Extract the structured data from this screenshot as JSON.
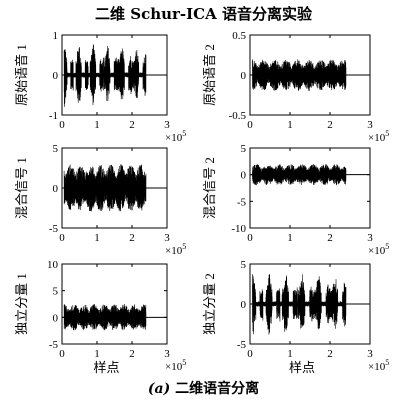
{
  "figure_title": "二维 Schur-ICA 语音分离实验",
  "caption": {
    "tag": "(a)",
    "text": "二维语音分离"
  },
  "chart_data": [
    {
      "type": "line",
      "title": "",
      "ylabel": "原始语音 1",
      "xlabel": "",
      "xlim": [
        0,
        3
      ],
      "ylim": [
        -1,
        1
      ],
      "yticks": [
        -1,
        0,
        1
      ],
      "xticks": [
        0,
        1,
        2,
        3
      ],
      "x_multiplier": "×10^5",
      "signal": {
        "start": 0.06,
        "end": 2.4,
        "amplitude": 0.8,
        "pattern": "bursty"
      }
    },
    {
      "type": "line",
      "title": "",
      "ylabel": "原始语音 2",
      "xlabel": "",
      "xlim": [
        0,
        3
      ],
      "ylim": [
        -0.5,
        0.5
      ],
      "yticks": [
        -0.5,
        0,
        0.5
      ],
      "xticks": [
        0,
        1,
        2,
        3
      ],
      "x_multiplier": "×10^5",
      "signal": {
        "start": 0.06,
        "end": 2.4,
        "amplitude": 0.2,
        "pattern": "dense"
      }
    },
    {
      "type": "line",
      "title": "",
      "ylabel": "混合信号 1",
      "xlabel": "",
      "xlim": [
        0,
        3
      ],
      "ylim": [
        -5,
        5
      ],
      "yticks": [
        -5,
        0,
        5
      ],
      "xticks": [
        0,
        1,
        2,
        3
      ],
      "x_multiplier": "×10^5",
      "signal": {
        "start": 0.06,
        "end": 2.4,
        "amplitude": 3,
        "pattern": "dense"
      }
    },
    {
      "type": "line",
      "title": "",
      "ylabel": "混合信号 2",
      "xlabel": "",
      "xlim": [
        0,
        3
      ],
      "ylim": [
        -10,
        5
      ],
      "yticks": [
        -10,
        -5,
        0,
        5
      ],
      "xticks": [
        0,
        1,
        2,
        3
      ],
      "x_multiplier": "×10^5",
      "signal": {
        "start": 0.06,
        "end": 2.4,
        "amplitude": 2,
        "pattern": "dense"
      }
    },
    {
      "type": "line",
      "title": "",
      "ylabel": "独立分量 1",
      "xlabel": "样点",
      "xlim": [
        0,
        3
      ],
      "ylim": [
        -5,
        10
      ],
      "yticks": [
        -5,
        0,
        5,
        10
      ],
      "xticks": [
        0,
        1,
        2,
        3
      ],
      "x_multiplier": "×10^5",
      "signal": {
        "start": 0.06,
        "end": 2.4,
        "amplitude": 2.5,
        "pattern": "dense"
      }
    },
    {
      "type": "line",
      "title": "",
      "ylabel": "独立分量 2",
      "xlabel": "样点",
      "xlim": [
        0,
        3
      ],
      "ylim": [
        -5,
        5
      ],
      "yticks": [
        -5,
        0,
        5
      ],
      "xticks": [
        0,
        1,
        2,
        3
      ],
      "x_multiplier": "×10^5",
      "signal": {
        "start": 0.06,
        "end": 2.4,
        "amplitude": 4,
        "pattern": "bursty"
      }
    }
  ]
}
